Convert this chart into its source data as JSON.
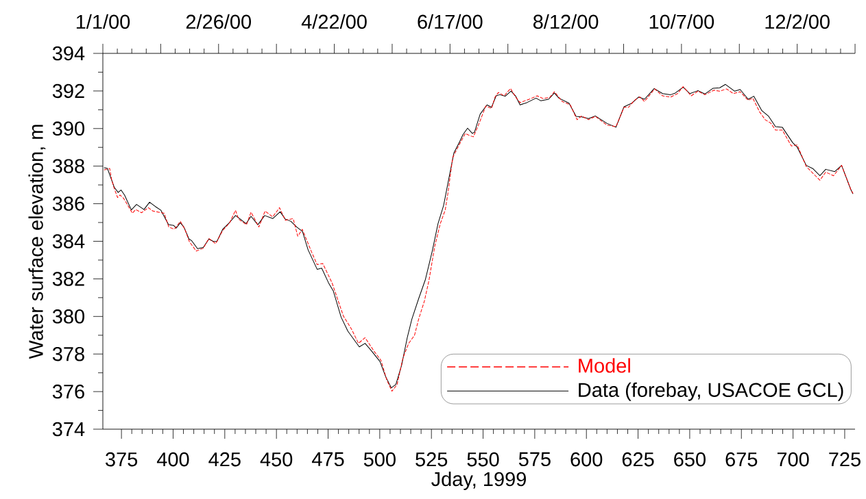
{
  "chart_data": {
    "type": "line",
    "xlabel": "Jday, 1999",
    "ylabel": "Water surface elevation, m",
    "xlim": [
      366,
      730
    ],
    "ylim": [
      374,
      394
    ],
    "xticks": [
      375,
      400,
      425,
      450,
      475,
      500,
      525,
      550,
      575,
      600,
      625,
      650,
      675,
      700,
      725
    ],
    "yticks": [
      374,
      376,
      378,
      380,
      382,
      384,
      386,
      388,
      390,
      392,
      394
    ],
    "x2lim": [
      "2000-01-01",
      "2000-12-30"
    ],
    "x2ticks": [
      {
        "value": "2000-01-01",
        "label": "1/1/00"
      },
      {
        "value": "2000-01-29",
        "label": null
      },
      {
        "value": "2000-02-26",
        "label": "2/26/00"
      },
      {
        "value": "2000-03-25",
        "label": null
      },
      {
        "value": "2000-04-22",
        "label": "4/22/00"
      },
      {
        "value": "2000-05-20",
        "label": null
      },
      {
        "value": "2000-06-17",
        "label": "6/17/00"
      },
      {
        "value": "2000-07-15",
        "label": null
      },
      {
        "value": "2000-08-12",
        "label": "8/12/00"
      },
      {
        "value": "2000-09-09",
        "label": null
      },
      {
        "value": "2000-10-07",
        "label": "10/7/00"
      },
      {
        "value": "2000-11-04",
        "label": null
      },
      {
        "value": "2000-12-02",
        "label": "12/2/00"
      },
      {
        "value": "2000-12-30",
        "label": null
      }
    ],
    "grid": false,
    "legend": "bottom right",
    "series": [
      {
        "name": "Model",
        "color": "#ff0000",
        "line_style": "dashed",
        "x": [
          366.6,
          369.3,
          370.2,
          371.3,
          373.1,
          374.3,
          376.1,
          378.1,
          380.3,
          381.9,
          384.7,
          388.0,
          390.2,
          392.9,
          395.7,
          397.9,
          400.6,
          403.5,
          405.7,
          407.9,
          411.2,
          414.6,
          417.3,
          420.6,
          424.0,
          427.3,
          430.2,
          431.7,
          435.5,
          437.7,
          441.5,
          444.5,
          448.2,
          451.5,
          454.3,
          458.1,
          460.3,
          462.5,
          467.0,
          469.7,
          472.4,
          476.9,
          482.4,
          486.2,
          489.7,
          492.9,
          497.3,
          500.6,
          503.4,
          505.9,
          508.4,
          511.2,
          514.0,
          516.8,
          518.8,
          521.6,
          523.8,
          526.6,
          529.3,
          531.7,
          533.1,
          535.3,
          538.1,
          541.4,
          543.6,
          545.3,
          548.1,
          551.3,
          554.1,
          555.8,
          557.4,
          560.2,
          563.3,
          565.7,
          567.9,
          572.3,
          576.2,
          578.9,
          582.2,
          584.5,
          588.3,
          592.2,
          595.5,
          597.7,
          601.0,
          604.3,
          609.9,
          614.3,
          618.2,
          620.4,
          623.1,
          625.9,
          628.1,
          633.0,
          636.9,
          640.8,
          644.1,
          646.8,
          650.7,
          654.0,
          657.3,
          661.7,
          664.5,
          667.8,
          671.1,
          674.4,
          678.3,
          680.5,
          683.8,
          686.5,
          689.3,
          691.5,
          694.8,
          699.2,
          702.0,
          706.4,
          709.7,
          713.0,
          715.8,
          719.6,
          723.5,
          727.9,
          729.0
        ],
        "values": [
          387.8,
          387.88,
          387.31,
          386.88,
          386.33,
          386.46,
          386.28,
          385.91,
          385.49,
          385.69,
          385.52,
          385.79,
          385.61,
          385.55,
          385.49,
          384.76,
          384.64,
          385.06,
          384.64,
          383.97,
          383.48,
          383.63,
          384.15,
          383.87,
          384.58,
          384.97,
          385.65,
          385.18,
          384.88,
          385.55,
          384.76,
          385.61,
          385.3,
          385.79,
          385.12,
          385.21,
          384.27,
          384.64,
          383.43,
          382.76,
          382.82,
          381.79,
          380.02,
          379.35,
          378.57,
          378.87,
          378.14,
          377.66,
          376.62,
          376.02,
          376.38,
          377.78,
          378.57,
          378.99,
          379.85,
          380.82,
          381.91,
          383.73,
          384.94,
          385.67,
          386.64,
          388.46,
          389.07,
          389.74,
          389.62,
          389.56,
          390.28,
          391.2,
          391.07,
          391.68,
          391.92,
          391.74,
          392.13,
          391.68,
          391.38,
          391.56,
          391.74,
          391.6,
          391.65,
          391.96,
          391.44,
          391.26,
          390.47,
          390.67,
          390.47,
          390.65,
          390.19,
          390.1,
          391.13,
          391.13,
          391.49,
          391.68,
          391.44,
          392.11,
          391.74,
          391.68,
          391.86,
          392.23,
          391.74,
          391.99,
          391.8,
          392.04,
          391.99,
          392.11,
          391.86,
          391.96,
          391.5,
          391.62,
          390.89,
          390.47,
          390.28,
          389.92,
          389.92,
          389.07,
          389.13,
          387.98,
          387.61,
          387.25,
          387.68,
          387.49,
          388.04,
          386.77,
          386.55
        ]
      },
      {
        "name": "Data (forebay, USACOE GCL)",
        "color": "#000000",
        "line_style": "solid",
        "x": [
          366.6,
          368.2,
          371.5,
          373.4,
          374.8,
          376.5,
          379.8,
          382.3,
          385.9,
          388.6,
          391.4,
          394.1,
          397.8,
          400.2,
          401.5,
          403.5,
          405.2,
          407.7,
          409.0,
          411.8,
          414.6,
          417.3,
          419.5,
          421.2,
          424.0,
          427.3,
          430.2,
          432.2,
          435.3,
          437.7,
          441.0,
          444.3,
          448.2,
          451.8,
          454.3,
          457.0,
          459.8,
          462.6,
          465.3,
          469.7,
          471.9,
          475.2,
          477.5,
          481.3,
          484.6,
          490.1,
          492.9,
          496.2,
          500.1,
          502.8,
          505.6,
          507.8,
          510.6,
          513.3,
          515.5,
          518.8,
          522.1,
          525.4,
          528.2,
          530.9,
          533.7,
          535.9,
          538.7,
          540.3,
          542.5,
          544.8,
          545.8,
          548.6,
          551.9,
          554.1,
          556.3,
          558.0,
          560.7,
          563.5,
          565.7,
          567.9,
          571.2,
          575.6,
          577.9,
          581.7,
          584.5,
          586.7,
          591.6,
          595.0,
          597.7,
          601.0,
          604.3,
          609.9,
          614.3,
          618.2,
          622.0,
          625.3,
          628.1,
          632.8,
          636.9,
          640.8,
          643.0,
          646.8,
          650.1,
          654.0,
          657.3,
          661.2,
          664.5,
          667.3,
          671.7,
          674.4,
          678.3,
          681.0,
          684.9,
          688.2,
          691.5,
          694.8,
          699.8,
          702.0,
          706.4,
          709.7,
          713.0,
          715.8,
          720.2,
          723.5,
          727.9,
          729.0
        ],
        "values": [
          387.92,
          387.88,
          386.88,
          386.6,
          386.73,
          386.46,
          385.67,
          385.96,
          385.69,
          386.08,
          385.85,
          385.65,
          384.88,
          384.85,
          384.7,
          384.99,
          384.76,
          384.12,
          384.03,
          383.61,
          383.67,
          384.12,
          383.99,
          383.99,
          384.64,
          385.0,
          385.37,
          385.21,
          384.94,
          385.33,
          384.88,
          385.37,
          385.21,
          385.57,
          385.18,
          385.06,
          384.76,
          384.52,
          383.55,
          382.51,
          382.57,
          381.79,
          381.36,
          379.96,
          379.21,
          378.38,
          378.57,
          378.14,
          377.6,
          376.81,
          376.2,
          376.38,
          377.41,
          378.87,
          379.84,
          380.94,
          381.97,
          383.48,
          384.94,
          385.91,
          387.49,
          388.71,
          389.31,
          389.68,
          390.02,
          389.74,
          389.8,
          390.77,
          391.26,
          391.13,
          391.74,
          391.8,
          391.72,
          391.99,
          391.74,
          391.26,
          391.38,
          391.62,
          391.48,
          391.56,
          391.89,
          391.62,
          391.35,
          390.65,
          390.62,
          390.53,
          390.67,
          390.28,
          390.07,
          391.16,
          391.35,
          391.68,
          391.56,
          392.13,
          391.86,
          391.8,
          391.89,
          392.2,
          391.86,
          392.02,
          391.84,
          392.14,
          392.17,
          392.35,
          391.99,
          392.08,
          391.56,
          391.72,
          390.95,
          390.65,
          390.1,
          390.07,
          389.25,
          389.01,
          388.04,
          387.86,
          387.49,
          387.83,
          387.71,
          388.04,
          386.77,
          386.52
        ]
      }
    ]
  }
}
